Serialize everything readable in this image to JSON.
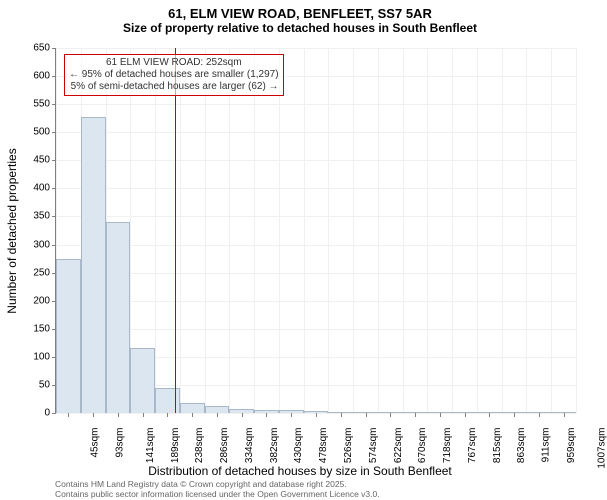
{
  "title": "61, ELM VIEW ROAD, BENFLEET, SS7 5AR",
  "subtitle": "Size of property relative to detached houses in South Benfleet",
  "chart": {
    "type": "histogram",
    "ylabel": "Number of detached properties",
    "xlabel": "Distribution of detached houses by size in South Benfleet",
    "ylim": [
      0,
      650
    ],
    "ytick_step": 50,
    "xtick_labels": [
      "45sqm",
      "93sqm",
      "141sqm",
      "189sqm",
      "238sqm",
      "286sqm",
      "334sqm",
      "382sqm",
      "430sqm",
      "478sqm",
      "526sqm",
      "574sqm",
      "622sqm",
      "670sqm",
      "718sqm",
      "767sqm",
      "815sqm",
      "863sqm",
      "911sqm",
      "959sqm",
      "1007sqm"
    ],
    "bar_values": [
      275,
      528,
      340,
      115,
      45,
      17,
      13,
      8,
      6,
      5,
      3,
      0,
      0,
      0,
      0,
      0,
      1,
      0,
      0,
      1,
      0
    ],
    "bar_fill": "#dbe6f1",
    "bar_edge": "#a8b8c8",
    "grid_color": "#f0f0f0",
    "background_color": "#ffffff",
    "axis_color": "#808080",
    "tick_fontsize": 10,
    "label_fontsize": 12,
    "title_fontsize": 13,
    "subtitle_fontsize": 12,
    "annotation": {
      "line1": "61 ELM VIEW ROAD: 252sqm",
      "line2": "← 95% of detached houses are smaller (1,297)",
      "line3": "5% of semi-detached houses are larger (62) →",
      "border_color": "#cc0000",
      "text_color": "#333333",
      "fontsize": 10
    },
    "reference_line": {
      "x_value": "252sqm",
      "color": "#cc0000"
    }
  },
  "attribution": {
    "line1": "Contains HM Land Registry data © Crown copyright and database right 2025.",
    "line2": "Contains public sector information licensed under the Open Government Licence v3.0.",
    "fontsize": 8.5,
    "color": "#666666"
  }
}
